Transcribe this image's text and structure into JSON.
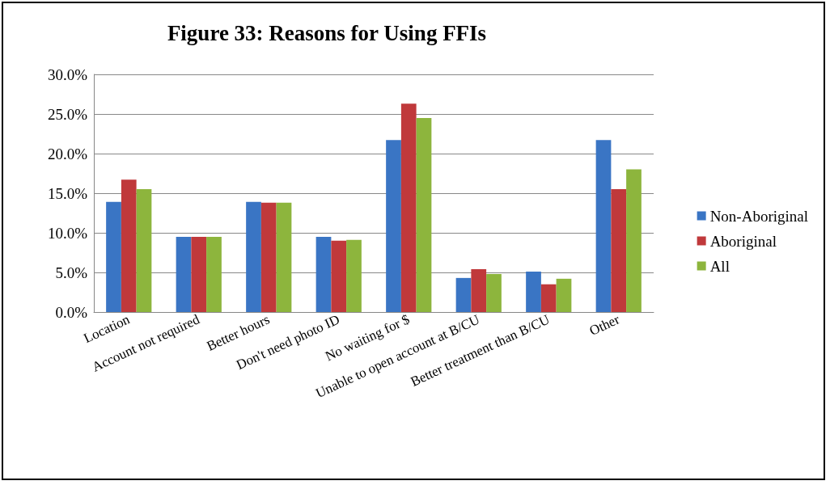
{
  "chart_data": {
    "type": "bar",
    "title": "Figure 33: Reasons for Using FFIs",
    "categories": [
      "Location",
      "Account not required",
      "Better hours",
      "Don't need photo ID",
      "No waiting for $",
      "Unable to open account at B/CU",
      "Better treatment than B/CU",
      "Other"
    ],
    "series": [
      {
        "name": "Non-Aboriginal",
        "color": "#3a75c4",
        "values": [
          13.9,
          9.5,
          13.9,
          9.5,
          21.7,
          4.3,
          5.1,
          21.7
        ]
      },
      {
        "name": "Aboriginal",
        "color": "#c0393b",
        "values": [
          16.7,
          9.5,
          13.8,
          9.0,
          26.3,
          5.4,
          3.5,
          15.5
        ]
      },
      {
        "name": "All",
        "color": "#8db53d",
        "values": [
          15.5,
          9.5,
          13.8,
          9.1,
          24.5,
          4.8,
          4.2,
          18.0
        ]
      }
    ],
    "ylim": [
      0,
      30
    ],
    "yticks": [
      {
        "value": 0,
        "label": "0.0%"
      },
      {
        "value": 5,
        "label": "5.0%"
      },
      {
        "value": 10,
        "label": "10.0%"
      },
      {
        "value": 15,
        "label": "15.0%"
      },
      {
        "value": 20,
        "label": "20.0%"
      },
      {
        "value": 25,
        "label": "25.0%"
      },
      {
        "value": 30,
        "label": "30.0%"
      }
    ],
    "grid": "y",
    "legend": "right"
  }
}
